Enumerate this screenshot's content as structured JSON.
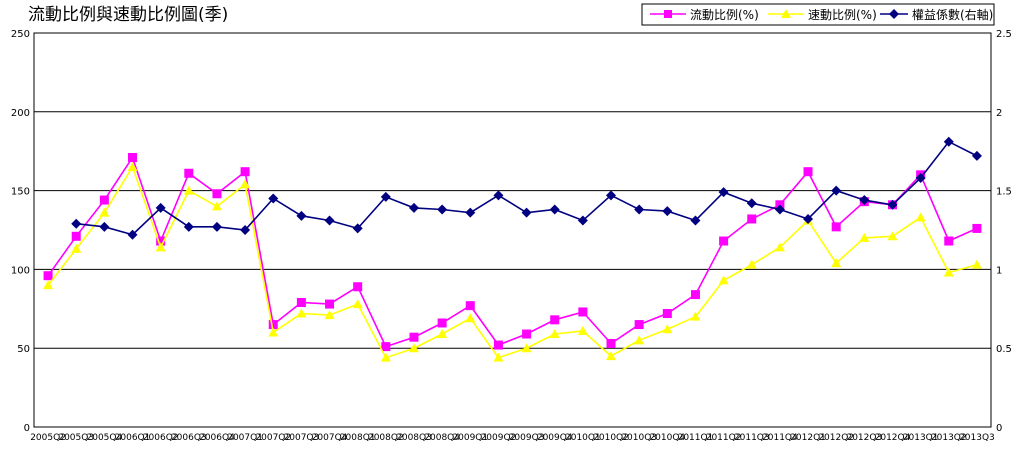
{
  "chart_data": {
    "type": "line",
    "title": "流動比例與速動比例圖(季)",
    "xlabel": "",
    "ylabel": "",
    "ylim": [
      0,
      250
    ],
    "y_ticks": [
      "0",
      "50",
      "100",
      "150",
      "200",
      "250"
    ],
    "y2lim": [
      0,
      2.5
    ],
    "y2_ticks": [
      "0",
      "0.5",
      "1",
      "1.5",
      "2",
      "2.5"
    ],
    "grid": true,
    "legend_position": "top-right",
    "x": [
      "2005Q2",
      "2005Q3",
      "2005Q4",
      "2006Q1",
      "2006Q2",
      "2006Q3",
      "2006Q4",
      "2007Q1",
      "2007Q2",
      "2007Q3",
      "2007Q4",
      "2008Q1",
      "2008Q2",
      "2008Q3",
      "2008Q4",
      "2009Q1",
      "2009Q2",
      "2009Q3",
      "2009Q4",
      "2010Q1",
      "2010Q2",
      "2010Q3",
      "2010Q4",
      "2011Q1",
      "2011Q2",
      "2011Q3",
      "2011Q4",
      "2012Q1",
      "2012Q2",
      "2012Q3",
      "2012Q4",
      "2013Q1",
      "2013Q2",
      "2013Q3"
    ],
    "series": [
      {
        "name": "流動比例(%)",
        "axis": "left",
        "color": "#ff00ff",
        "marker": "square",
        "values": [
          96,
          121,
          144,
          171,
          118,
          161,
          148,
          162,
          65,
          79,
          78,
          89,
          51,
          57,
          66,
          77,
          52,
          59,
          68,
          73,
          53,
          65,
          72,
          84,
          118,
          132,
          141,
          162,
          127,
          143,
          141,
          160,
          118,
          126
        ]
      },
      {
        "name": "速動比例(%)",
        "axis": "left",
        "color": "#ffff00",
        "marker": "triangle",
        "values": [
          90,
          113,
          136,
          165,
          114,
          150,
          140,
          154,
          60,
          72,
          71,
          78,
          44,
          50,
          59,
          69,
          44,
          50,
          59,
          61,
          45,
          55,
          62,
          70,
          93,
          103,
          114,
          131,
          104,
          120,
          121,
          133,
          98,
          103
        ]
      },
      {
        "name": "權益係數(右軸)",
        "axis": "right",
        "color": "#000080",
        "marker": "diamond",
        "values": [
          null,
          1.29,
          1.27,
          1.22,
          1.39,
          1.27,
          1.27,
          1.25,
          1.45,
          1.34,
          1.31,
          1.26,
          1.46,
          1.39,
          1.38,
          1.36,
          1.47,
          1.36,
          1.38,
          1.31,
          1.47,
          1.38,
          1.37,
          1.31,
          1.49,
          1.42,
          1.38,
          1.32,
          1.5,
          1.44,
          1.41,
          1.58,
          1.81,
          1.72
        ]
      }
    ]
  }
}
